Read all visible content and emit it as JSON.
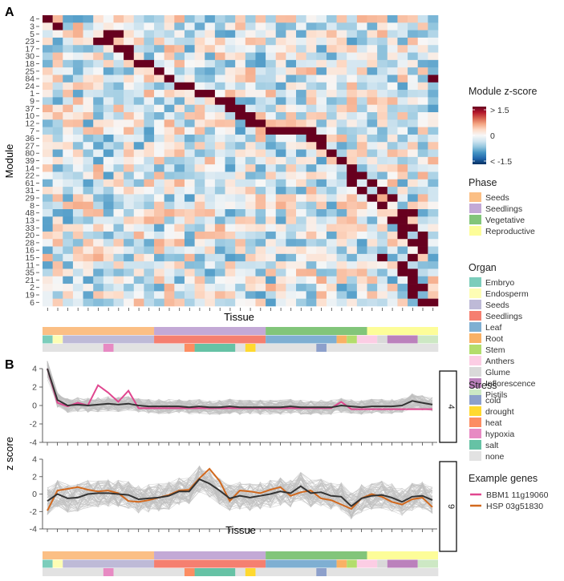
{
  "chart_data": [
    {
      "type": "heatmap",
      "panel_label": "A",
      "ylabel": "Module",
      "xlabel": "Tissue",
      "rows": [
        "4",
        "3",
        "5",
        "23",
        "17",
        "30",
        "18",
        "25",
        "84",
        "24",
        "1",
        "9",
        "37",
        "10",
        "12",
        "7",
        "36",
        "27",
        "80",
        "39",
        "14",
        "22",
        "61",
        "31",
        "29",
        "8",
        "48",
        "13",
        "33",
        "20",
        "28",
        "16",
        "15",
        "11",
        "35",
        "21",
        "2",
        "19",
        "6"
      ],
      "n_columns": 39,
      "value_range": [
        -1.5,
        1.5
      ],
      "colorbar": {
        "title": "Module z-score",
        "tick_labels": [
          "> 1.5",
          "0",
          "< -1.5"
        ],
        "colors": [
          "#67001f",
          "#b2182b",
          "#d6604d",
          "#f4a582",
          "#fddbc7",
          "#f7f7f7",
          "#d1e5f0",
          "#92c5de",
          "#4393c3",
          "#2166ac",
          "#053061"
        ]
      }
    },
    {
      "type": "line",
      "panel_label": "B",
      "xlabel": "Tissue",
      "ylabel": "z score",
      "x_count": 39,
      "ylim": [
        -4,
        4
      ],
      "yticks": [
        "4",
        "2",
        "0",
        "-2",
        "-4"
      ],
      "facets": [
        {
          "strip_label": "4",
          "mean_series": [
            4.0,
            0.6,
            0.0,
            0.1,
            0.0,
            0.1,
            0.2,
            0.1,
            0.2,
            0.0,
            -0.1,
            -0.1,
            -0.1,
            -0.1,
            -0.2,
            -0.1,
            -0.2,
            -0.2,
            -0.1,
            -0.2,
            -0.2,
            -0.2,
            -0.2,
            -0.2,
            -0.1,
            -0.2,
            -0.2,
            -0.2,
            -0.2,
            0.0,
            -0.1,
            -0.2,
            -0.1,
            -0.1,
            -0.1,
            0.0,
            0.5,
            0.3,
            0.1
          ],
          "example_series": [
            4.0,
            0.3,
            -0.1,
            0.3,
            0.0,
            2.2,
            1.4,
            0.4,
            1.6,
            -0.3,
            -0.3,
            -0.3,
            -0.3,
            -0.3,
            -0.3,
            -0.3,
            -0.3,
            -0.3,
            -0.3,
            -0.3,
            -0.3,
            -0.3,
            -0.3,
            -0.3,
            -0.3,
            -0.3,
            -0.3,
            -0.3,
            -0.3,
            0.4,
            -0.4,
            -0.4,
            -0.4,
            -0.4,
            -0.4,
            -0.4,
            -0.4,
            -0.4,
            -0.4
          ]
        },
        {
          "strip_label": "9",
          "mean_series": [
            -0.8,
            0.0,
            -0.5,
            -0.4,
            0.0,
            0.1,
            0.1,
            0.0,
            -0.1,
            -0.6,
            -0.5,
            -0.4,
            -0.2,
            0.3,
            0.3,
            1.7,
            1.2,
            0.4,
            -0.5,
            -0.2,
            -0.4,
            -0.2,
            0.0,
            0.3,
            0.1,
            0.9,
            0.1,
            0.2,
            -0.2,
            -0.3,
            -1.4,
            -0.5,
            -0.2,
            -0.1,
            -0.4,
            -0.9,
            -0.3,
            -0.2,
            -0.7
          ],
          "example_series": [
            -1.9,
            0.4,
            0.6,
            0.8,
            0.5,
            0.3,
            0.4,
            0.1,
            -0.8,
            -0.9,
            -0.7,
            -0.4,
            -0.1,
            0.4,
            0.5,
            1.8,
            2.9,
            1.5,
            -0.8,
            0.4,
            0.3,
            0.1,
            0.5,
            0.8,
            -0.2,
            0.2,
            0.4,
            -0.5,
            -0.7,
            -1.2,
            -1.7,
            -0.5,
            0.0,
            -0.3,
            -0.9,
            -1.2,
            -0.6,
            -0.4,
            -1.5
          ]
        }
      ],
      "example_genes": [
        {
          "name": "BBM1 11g19060",
          "color": "#e0468f"
        },
        {
          "name": "HSP 03g51830",
          "color": "#d2691e"
        }
      ],
      "mean_color": "#333333",
      "background_color": "#bfbfbf"
    }
  ],
  "annotations": {
    "phase_title": "Phase",
    "phase": [
      {
        "label": "Seeds",
        "color": "#fbbf85",
        "start": 0,
        "end": 11
      },
      {
        "label": "Seedlings",
        "color": "#c3a9d6",
        "start": 11,
        "end": 22
      },
      {
        "label": "Vegetative",
        "color": "#82c57a",
        "start": 22,
        "end": 32
      },
      {
        "label": "Reproductive",
        "color": "#fdfd99",
        "start": 32,
        "end": 39
      }
    ],
    "organ_title": "Organ",
    "organ": [
      {
        "label": "Embryo",
        "color": "#7ccdbb",
        "start": 0,
        "end": 1
      },
      {
        "label": "Endosperm",
        "color": "#fdfdb4",
        "start": 1,
        "end": 2
      },
      {
        "label": "Seeds",
        "color": "#bebad7",
        "start": 2,
        "end": 11
      },
      {
        "label": "Seedlings",
        "color": "#f57f70",
        "start": 11,
        "end": 22
      },
      {
        "label": "Leaf",
        "color": "#7fafd2",
        "start": 22,
        "end": 29
      },
      {
        "label": "Root",
        "color": "#f9b165",
        "start": 29,
        "end": 30
      },
      {
        "label": "Stem",
        "color": "#b3dd6c",
        "start": 30,
        "end": 31
      },
      {
        "label": "Anthers",
        "color": "#fccde4",
        "start": 31,
        "end": 33
      },
      {
        "label": "Glume",
        "color": "#d9d9d9",
        "start": 33,
        "end": 34
      },
      {
        "label": "Inflorescence",
        "color": "#bb81bc",
        "start": 34,
        "end": 37
      },
      {
        "label": "Pistils",
        "color": "#cde8c4",
        "start": 37,
        "end": 39
      }
    ],
    "organ_legend_labels": [
      "Embryo",
      "Endosperm",
      "Seeds",
      "Seedlings",
      "Leaf",
      "Root",
      "Stem",
      "Anthers",
      "Glume",
      "Inflorescence",
      "Pistils"
    ],
    "stress_title": "Stress",
    "stress_legend": [
      {
        "label": "cold",
        "color": "#8da0cb"
      },
      {
        "label": "drought",
        "color": "#ffd92f"
      },
      {
        "label": "heat",
        "color": "#fc8d62"
      },
      {
        "label": "hypoxia",
        "color": "#e78ac3"
      },
      {
        "label": "salt",
        "color": "#66c2a5"
      },
      {
        "label": "none",
        "color": "#e2e2e2"
      }
    ],
    "stress_track": [
      "none",
      "none",
      "none",
      "none",
      "none",
      "none",
      "hypoxia",
      "none",
      "none",
      "none",
      "none",
      "none",
      "none",
      "none",
      "heat",
      "salt",
      "salt",
      "salt",
      "salt",
      "none",
      "drought",
      "none",
      "none",
      "none",
      "none",
      "none",
      "none",
      "cold",
      "none",
      "none",
      "none",
      "none",
      "none",
      "none",
      "none",
      "none",
      "none",
      "none",
      "none"
    ],
    "example_genes_title": "Example genes"
  }
}
